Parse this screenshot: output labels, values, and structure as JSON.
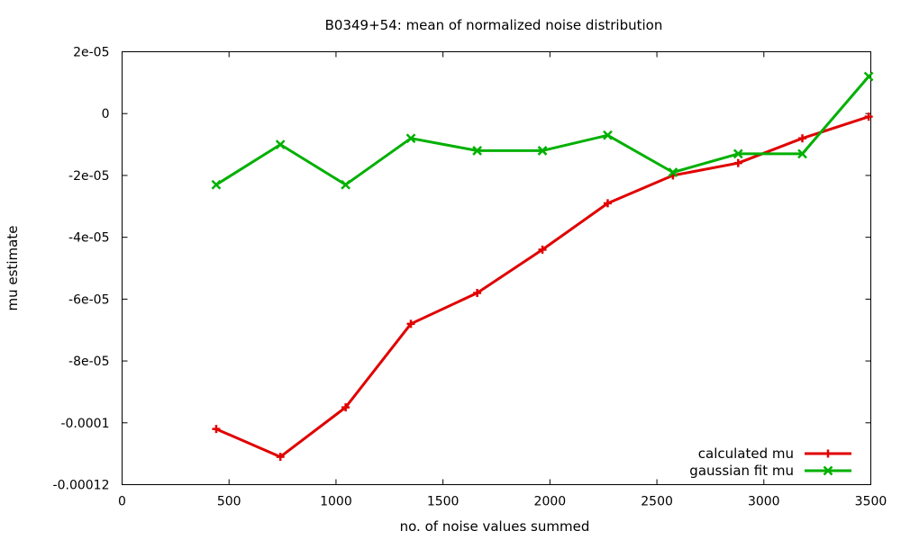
{
  "chart_data": {
    "type": "line",
    "title": "B0349+54: mean  of normalized noise distribution",
    "xlabel": "no. of noise values summed",
    "ylabel": "mu estimate",
    "xlim": [
      0,
      3500
    ],
    "ylim": [
      -0.00012,
      2e-05
    ],
    "x_ticks": [
      0,
      500,
      1000,
      1500,
      2000,
      2500,
      3000,
      3500
    ],
    "x_tick_labels": [
      "0",
      "500",
      "1000",
      "1500",
      "2000",
      "2500",
      "3000",
      "3500"
    ],
    "y_ticks": [
      2e-05,
      0,
      -2e-05,
      -4e-05,
      -6e-05,
      -8e-05,
      -0.0001,
      -0.00012
    ],
    "y_tick_labels": [
      "2e-05",
      "0",
      "-2e-05",
      "-4e-05",
      "-6e-05",
      "-8e-05",
      "-0.0001",
      "-0.00012"
    ],
    "grid": false,
    "legend_position": "bottom-right",
    "series": [
      {
        "name": "calculated mu",
        "color": "#e00000",
        "marker": "plus",
        "x": [
          440,
          740,
          1045,
          1350,
          1660,
          1965,
          2270,
          2575,
          2880,
          3180,
          3490
        ],
        "y": [
          -0.000102,
          -0.000111,
          -9.5e-05,
          -6.8e-05,
          -5.8e-05,
          -4.4e-05,
          -2.9e-05,
          -2e-05,
          -1.6e-05,
          -8e-06,
          -1e-06
        ]
      },
      {
        "name": "gaussian fit mu",
        "color": "#00b000",
        "marker": "x",
        "x": [
          440,
          740,
          1045,
          1350,
          1660,
          1965,
          2270,
          2575,
          2880,
          3180,
          3490
        ],
        "y": [
          -2.3e-05,
          -1e-05,
          -2.3e-05,
          -8e-06,
          -1.2e-05,
          -1.2e-05,
          -7e-06,
          -1.9e-05,
          -1.3e-05,
          -1.3e-05,
          1.2e-05
        ]
      }
    ]
  }
}
